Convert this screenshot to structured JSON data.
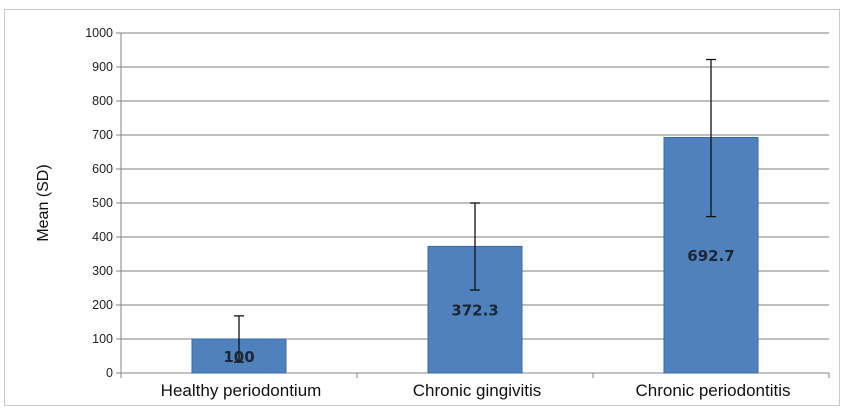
{
  "chart_data": {
    "type": "bar",
    "categories": [
      "Healthy periodontium",
      "Chronic gingivitis",
      "Chronic periodontitis"
    ],
    "values": [
      100,
      372.3,
      692.7
    ],
    "data_labels": [
      "100",
      "372.3",
      "692.7"
    ],
    "error_bars": [
      {
        "low": 32,
        "high": 168
      },
      {
        "low": 244,
        "high": 500
      },
      {
        "low": 460,
        "high": 922
      }
    ],
    "ylabel": "Mean (SD)",
    "xlabel": "",
    "ylim": [
      0,
      1000
    ],
    "yticks": [
      "0",
      "100",
      "200",
      "300",
      "400",
      "500",
      "600",
      "700",
      "800",
      "900",
      "1000"
    ],
    "grid": true,
    "legend": "none",
    "colors": {
      "bar": "#4f81bd",
      "bar_edge": "#3a6aa5",
      "grid": "#7f7f7f",
      "axis": "#868686",
      "errorbar": "#111111"
    }
  }
}
